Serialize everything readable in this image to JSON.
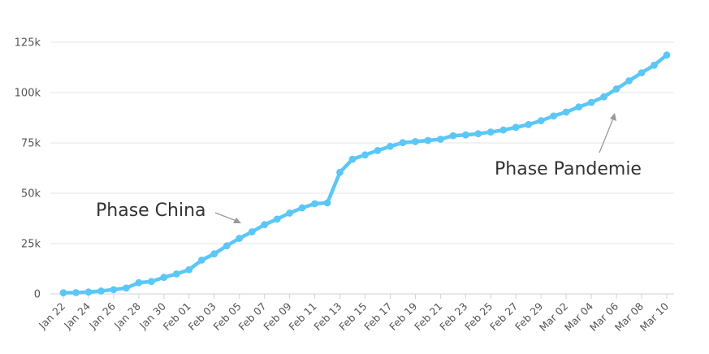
{
  "chart_data": {
    "type": "line",
    "title": "",
    "xlabel": "",
    "ylabel": "",
    "ylim": [
      0,
      125000
    ],
    "yticks": [
      0,
      25000,
      50000,
      75000,
      100000,
      125000
    ],
    "ytick_labels": [
      "0",
      "25k",
      "50k",
      "75k",
      "100k",
      "125k"
    ],
    "xtick_labels": [
      "Jan 22",
      "Jan 24",
      "Jan 26",
      "Jan 28",
      "Jan 30",
      "Feb 01",
      "Feb 03",
      "Feb 05",
      "Feb 07",
      "Feb 09",
      "Feb 11",
      "Feb 13",
      "Feb 15",
      "Feb 17",
      "Feb 19",
      "Feb 21",
      "Feb 23",
      "Feb 25",
      "Feb 27",
      "Feb 29",
      "Mar 02",
      "Mar 04",
      "Mar 06",
      "Mar 08",
      "Mar 10"
    ],
    "grid": true,
    "legend": "none",
    "x": [
      "Jan 22",
      "Jan 23",
      "Jan 24",
      "Jan 25",
      "Jan 26",
      "Jan 27",
      "Jan 28",
      "Jan 29",
      "Jan 30",
      "Jan 31",
      "Feb 01",
      "Feb 02",
      "Feb 03",
      "Feb 04",
      "Feb 05",
      "Feb 06",
      "Feb 07",
      "Feb 08",
      "Feb 09",
      "Feb 10",
      "Feb 11",
      "Feb 12",
      "Feb 13",
      "Feb 14",
      "Feb 15",
      "Feb 16",
      "Feb 17",
      "Feb 18",
      "Feb 19",
      "Feb 20",
      "Feb 21",
      "Feb 22",
      "Feb 23",
      "Feb 24",
      "Feb 25",
      "Feb 26",
      "Feb 27",
      "Feb 28",
      "Feb 29",
      "Mar 01",
      "Mar 02",
      "Mar 03",
      "Mar 04",
      "Mar 05",
      "Mar 06",
      "Mar 07",
      "Mar 08",
      "Mar 09",
      "Mar 10"
    ],
    "series": [
      {
        "color": "#5bc7f7",
        "values": [
          555,
          654,
          941,
          1434,
          2118,
          2927,
          5578,
          6166,
          8234,
          9927,
          12038,
          16787,
          19881,
          23892,
          27635,
          30817,
          34391,
          37120,
          40150,
          42762,
          44802,
          45221,
          60368,
          66885,
          69030,
          71224,
          73258,
          75136,
          75639,
          76197,
          76819,
          78572,
          78958,
          79561,
          80406,
          81388,
          82746,
          84112,
          86011,
          88369,
          90306,
          92840,
          95120,
          97886,
          101801,
          105847,
          109821,
          113590,
          118620
        ]
      }
    ],
    "annotations": [
      {
        "text": "Phase China",
        "arrow_color": "#9a9a9a"
      },
      {
        "text": "Phase Pandemie",
        "arrow_color": "#9a9a9a"
      }
    ]
  }
}
